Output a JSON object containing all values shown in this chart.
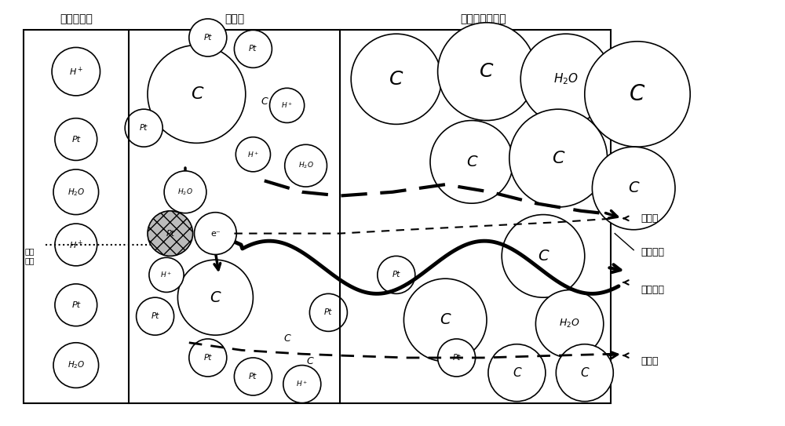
{
  "label_membrane": "质子交换膜",
  "label_catalyst": "催化层",
  "label_diffusion": "整平层与扩散层",
  "label_water_channel": "水通道",
  "label_electron_channel": "电子通道",
  "label_gas_channel": "气体通道",
  "label_heat_channel": "热通道",
  "label_proton_channel": "质子\n通道",
  "bg_color": "#ffffff",
  "fig_width": 10.0,
  "fig_height": 5.43,
  "dpi": 100
}
